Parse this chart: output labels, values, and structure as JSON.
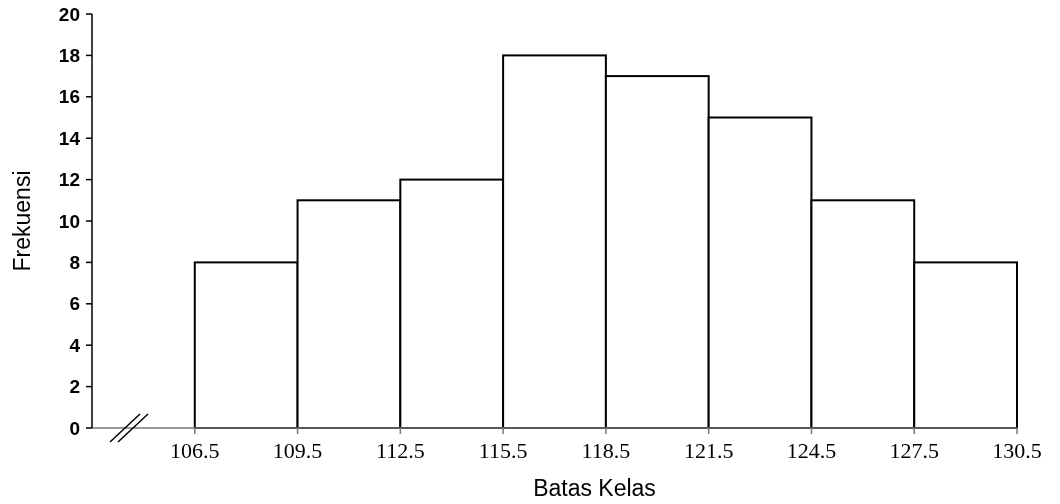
{
  "chart_data": {
    "type": "histogram",
    "xlabel": "Batas Kelas",
    "ylabel": "Frekuensi",
    "bins": [
      106.5,
      109.5,
      112.5,
      115.5,
      118.5,
      121.5,
      124.5,
      127.5,
      130.5
    ],
    "values": [
      8,
      11,
      12,
      18,
      17,
      15,
      11,
      8
    ],
    "color": "#ffffff",
    "xlim": [
      103.5,
      130.5
    ],
    "xticks": [
      106.5,
      109.5,
      112.5,
      115.5,
      118.5,
      121.5,
      124.5,
      127.5,
      130.5
    ],
    "ylim": [
      0,
      20
    ],
    "yticks": [
      0,
      2,
      4,
      6,
      8,
      10,
      12,
      14,
      16,
      18,
      20
    ],
    "grid": false
  }
}
